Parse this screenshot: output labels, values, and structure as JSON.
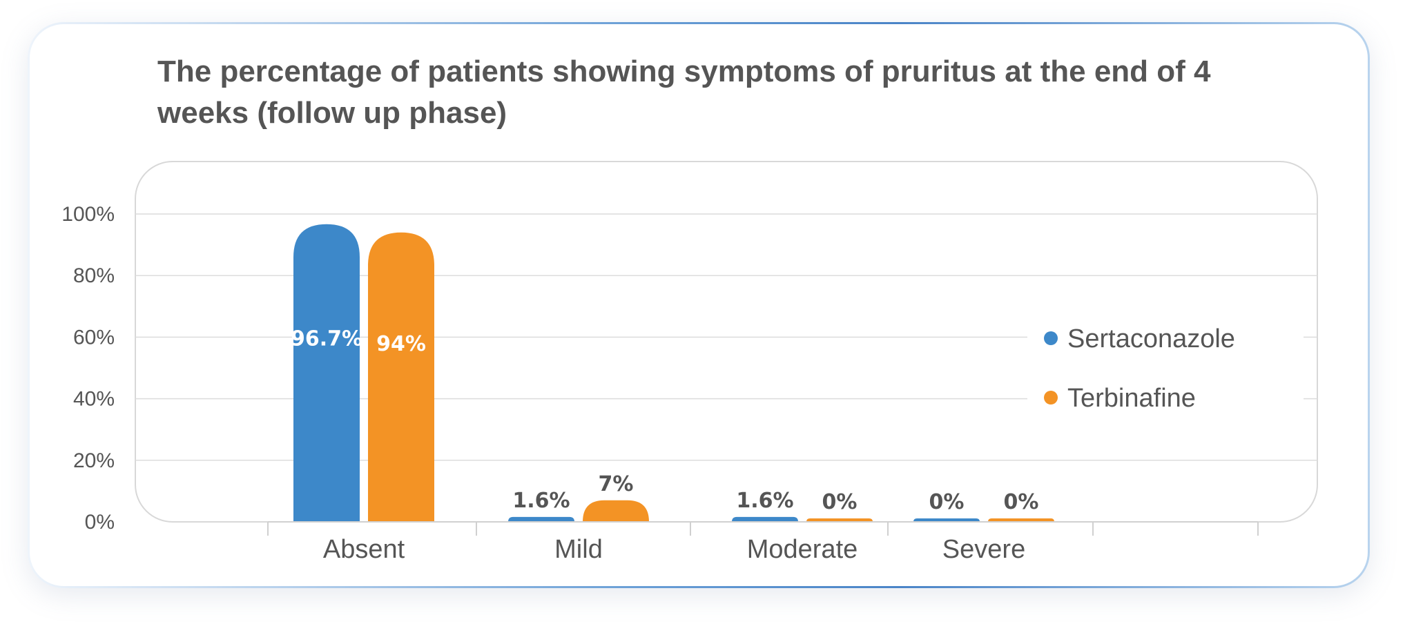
{
  "chart_data": {
    "type": "bar",
    "title": "The percentage of patients showing symptoms of pruritus at the end of 4 weeks (follow up phase)",
    "categories": [
      "Absent",
      "Mild",
      "Moderate",
      "Severe"
    ],
    "series": [
      {
        "name": "Sertaconazole",
        "color": "#3d88c9",
        "values": [
          96.7,
          1.6,
          1.6,
          0
        ],
        "labels": [
          "96.7%",
          "1.6%",
          "1.6%",
          "0%"
        ]
      },
      {
        "name": "Terbinafine",
        "color": "#f39325",
        "values": [
          94,
          7,
          0,
          0
        ],
        "labels": [
          "94%",
          "7%",
          "0%",
          "0%"
        ]
      }
    ],
    "y_ticks": [
      "0%",
      "20%",
      "40%",
      "60%",
      "80%",
      "100%"
    ],
    "ylim": [
      0,
      100
    ],
    "grid": true,
    "legend": "right"
  }
}
